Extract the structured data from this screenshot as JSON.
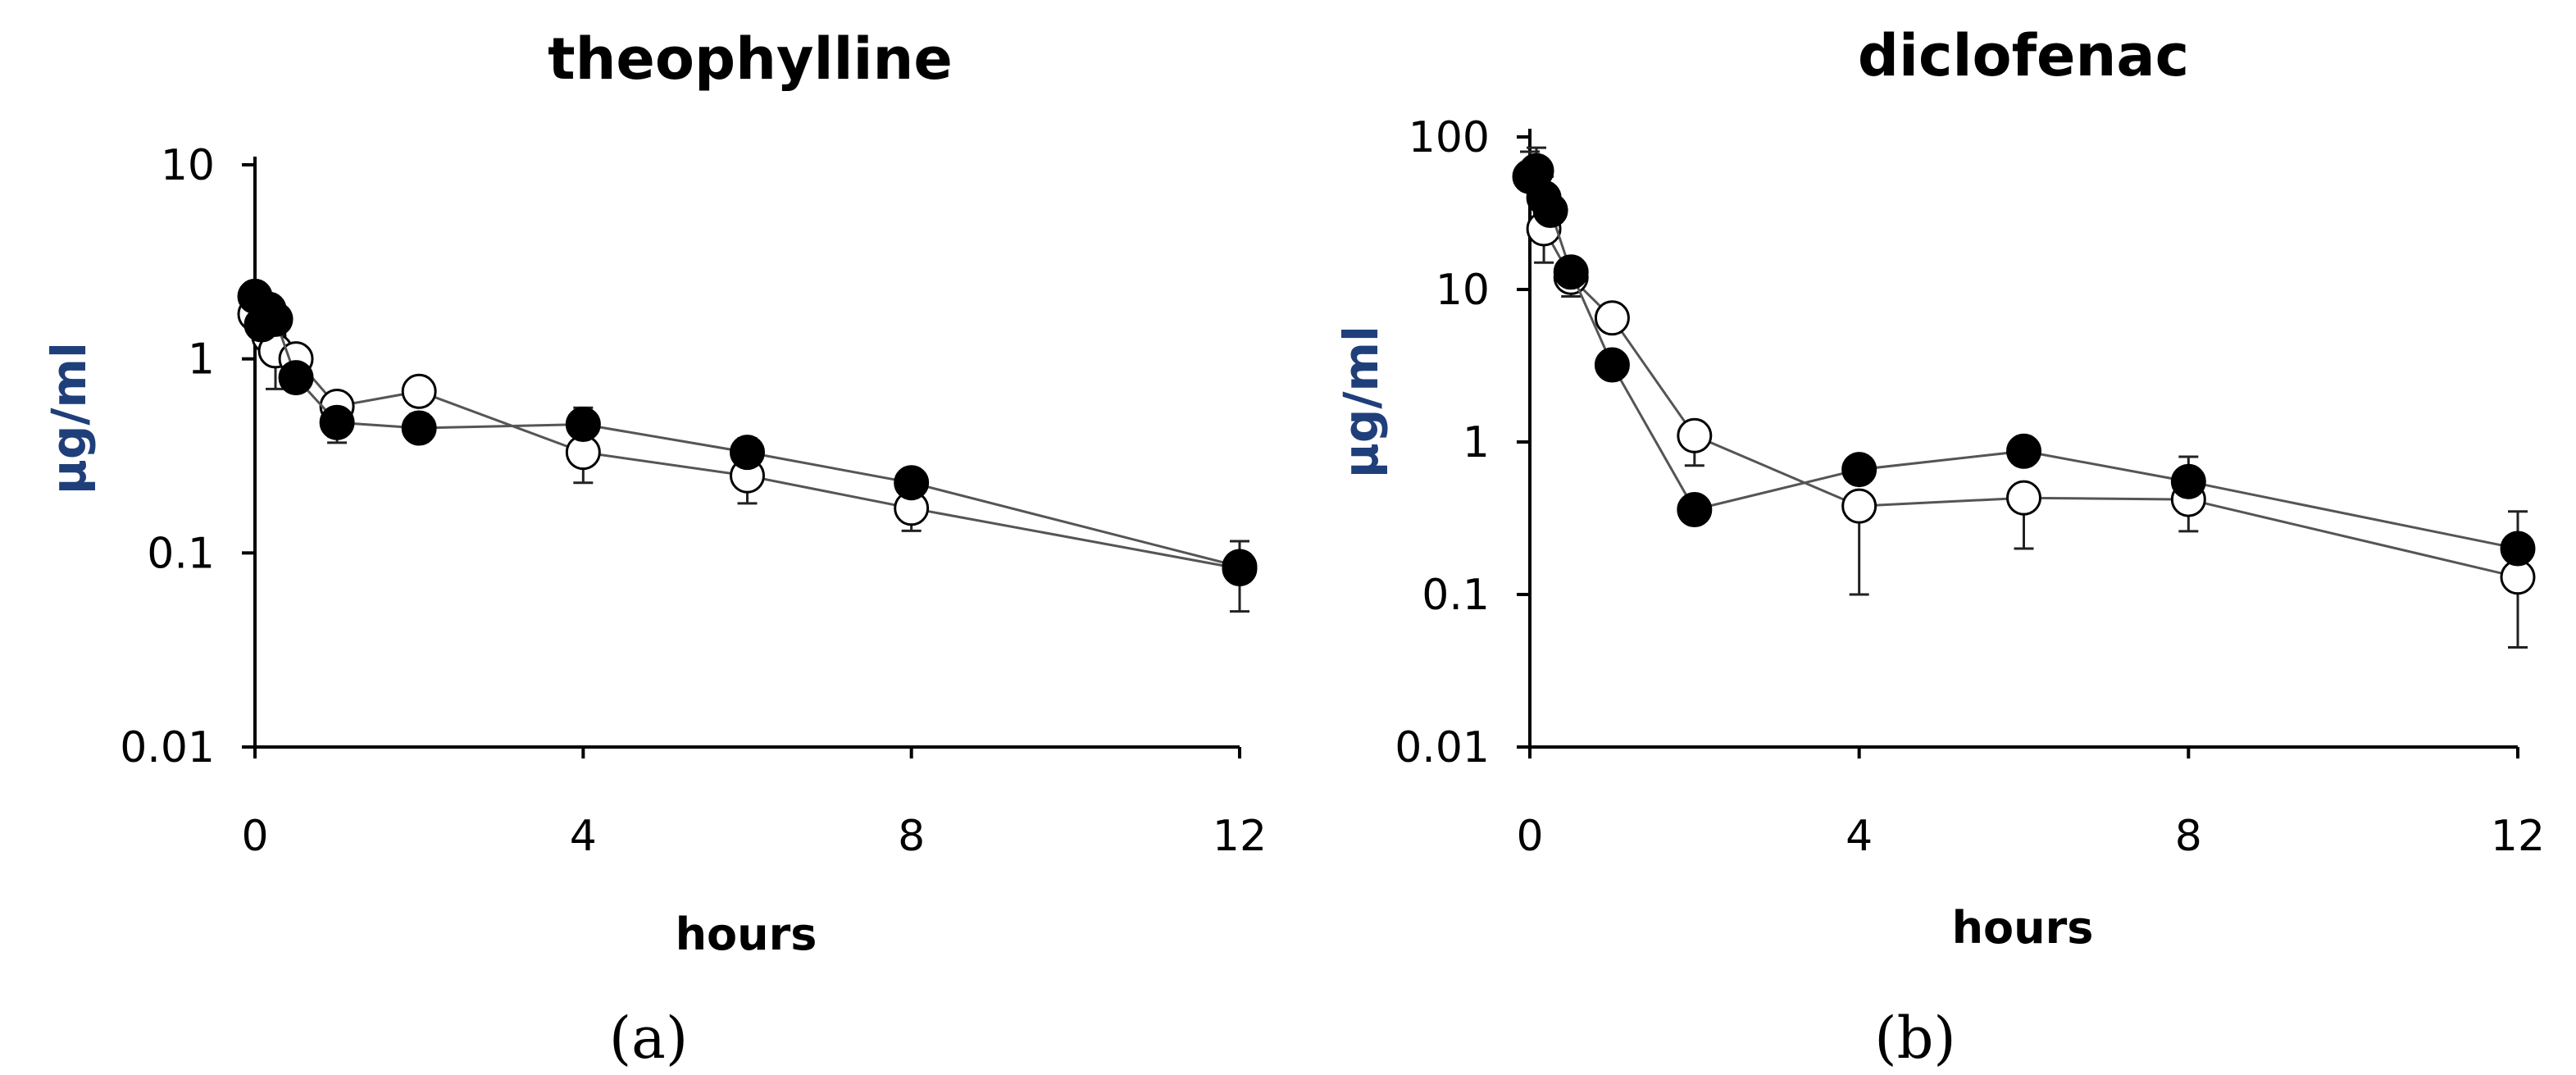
{
  "chart_data": [
    {
      "type": "line",
      "panel_label": "(a)",
      "title": "theophylline",
      "xlabel": "hours",
      "ylabel": "μg/ml",
      "yscale": "log",
      "xlim": [
        0,
        12
      ],
      "ylim": [
        0.01,
        10
      ],
      "x_ticks": [
        "0",
        "4",
        "8",
        "12"
      ],
      "y_ticks": [
        "0.01",
        "0.1",
        "1",
        "10"
      ],
      "grid": false,
      "series": [
        {
          "marker": "filled-circle",
          "x": [
            0,
            0.08,
            0.17,
            0.25,
            0.5,
            1,
            2,
            4,
            6,
            8,
            12
          ],
          "y": [
            2.1,
            1.5,
            1.8,
            1.6,
            0.8,
            0.47,
            0.44,
            0.46,
            0.33,
            0.23,
            0.085
          ],
          "err_up": [
            0.3,
            0.3,
            0.3,
            0.3,
            0.1,
            0.08,
            0.08,
            0.1,
            0.06,
            0.03,
            0.03
          ],
          "err_down": [
            0,
            0,
            0,
            0,
            0,
            0.1,
            0,
            0,
            0,
            0,
            0
          ]
        },
        {
          "marker": "open-circle",
          "x": [
            0,
            0.17,
            0.25,
            0.5,
            1,
            2,
            4,
            6,
            8,
            12
          ],
          "y": [
            1.7,
            1.3,
            1.1,
            1.0,
            0.57,
            0.68,
            0.33,
            0.25,
            0.17,
            0.083
          ],
          "err_up": [
            0,
            0,
            0,
            0,
            0,
            0,
            0,
            0,
            0,
            0
          ],
          "err_down": [
            0,
            0,
            0.4,
            0,
            0,
            0,
            0.1,
            0.07,
            0.04,
            0.033
          ]
        }
      ]
    },
    {
      "type": "line",
      "panel_label": "(b)",
      "title": "diclofenac",
      "xlabel": "hours",
      "ylabel": "μg/ml",
      "yscale": "log",
      "xlim": [
        0,
        12
      ],
      "ylim": [
        0.01,
        100
      ],
      "x_ticks": [
        "0",
        "4",
        "8",
        "12"
      ],
      "y_ticks": [
        "0.01",
        "0.1",
        "1",
        "10",
        "100"
      ],
      "grid": false,
      "series": [
        {
          "marker": "filled-circle",
          "x": [
            0,
            0.08,
            0.17,
            0.25,
            0.5,
            1,
            2,
            4,
            6,
            8,
            12
          ],
          "y": [
            55,
            60,
            40,
            33,
            13,
            3.2,
            0.36,
            0.66,
            0.87,
            0.55,
            0.2
          ],
          "err_up": [
            25,
            25,
            15,
            10,
            3,
            0,
            0,
            0.1,
            0.15,
            0.25,
            0.15
          ],
          "err_down": [
            0,
            0,
            0,
            0,
            0,
            0,
            0,
            0,
            0,
            0,
            0
          ]
        },
        {
          "marker": "open-circle",
          "x": [
            0.17,
            0.5,
            1,
            2,
            4,
            6,
            8,
            12
          ],
          "y": [
            25,
            12,
            6.5,
            1.1,
            0.38,
            0.43,
            0.42,
            0.13
          ],
          "err_up": [
            0,
            0,
            0,
            0,
            0,
            0,
            0,
            0
          ],
          "err_down": [
            10,
            3,
            0,
            0.4,
            0.28,
            0.23,
            0.16,
            0.085
          ]
        }
      ]
    }
  ]
}
